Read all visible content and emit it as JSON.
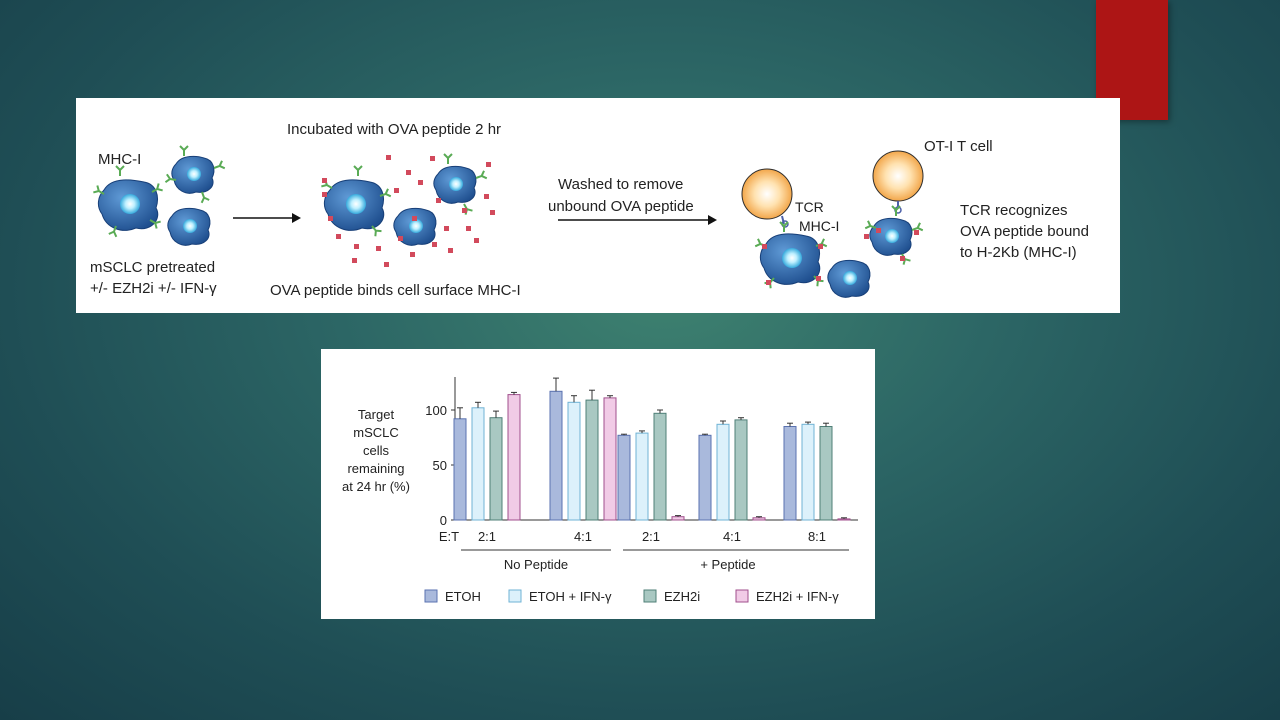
{
  "colors": {
    "accent": "#ad1515",
    "etoh": "#a9b9dc",
    "etoh_ifn": "#dcf1fb",
    "ezh2i": "#a9c8c2",
    "ezh2i_ifn": "#f1cbe6"
  },
  "diagram": {
    "mhc_label": "MHC-I",
    "pretreated_line1": "mSCLC pretreated",
    "pretreated_line2": "+/- EZH2i +/- IFN-γ",
    "incubated": "Incubated with OVA peptide 2 hr",
    "binds": "OVA peptide binds cell surface MHC-I",
    "washed_line1": "Washed to remove",
    "washed_line2": "unbound OVA peptide",
    "tcr": "TCR",
    "mhc_small": "MHC-I",
    "ot1": "OT-I T cell",
    "recognizes_line1": "TCR recognizes",
    "recognizes_line2": "OVA peptide bound",
    "recognizes_line3": "to H-2Kb (MHC-I)"
  },
  "chart_data": {
    "type": "bar",
    "ylabel_lines": [
      "Target",
      "mSCLC",
      "cells",
      "remaining",
      "at 24 hr (%)"
    ],
    "ylim": [
      0,
      130
    ],
    "yticks": [
      0,
      50,
      100
    ],
    "et_label": "E:T",
    "categories": [
      "2:1",
      "4:1",
      "2:1",
      "4:1",
      "8:1"
    ],
    "group_labels": [
      "No Peptide",
      "+ Peptide"
    ],
    "series": [
      {
        "name": "ETOH",
        "color": "#a9b9dc",
        "values": [
          92,
          117,
          77,
          77,
          85
        ],
        "errors": [
          10,
          12,
          1,
          1,
          3
        ]
      },
      {
        "name": "ETOH + IFN-γ",
        "color": "#dcf1fb",
        "values": [
          102,
          107,
          79,
          87,
          87
        ],
        "errors": [
          5,
          6,
          2,
          3,
          2
        ]
      },
      {
        "name": "EZH2i",
        "color": "#a9c8c2",
        "values": [
          93,
          109,
          97,
          91,
          85
        ],
        "errors": [
          6,
          9,
          3,
          2,
          3
        ]
      },
      {
        "name": "EZH2i + IFN-γ",
        "color": "#f1cbe6",
        "values": [
          114,
          111,
          3,
          2,
          1
        ],
        "errors": [
          2,
          2,
          1,
          1,
          1
        ]
      }
    ]
  }
}
